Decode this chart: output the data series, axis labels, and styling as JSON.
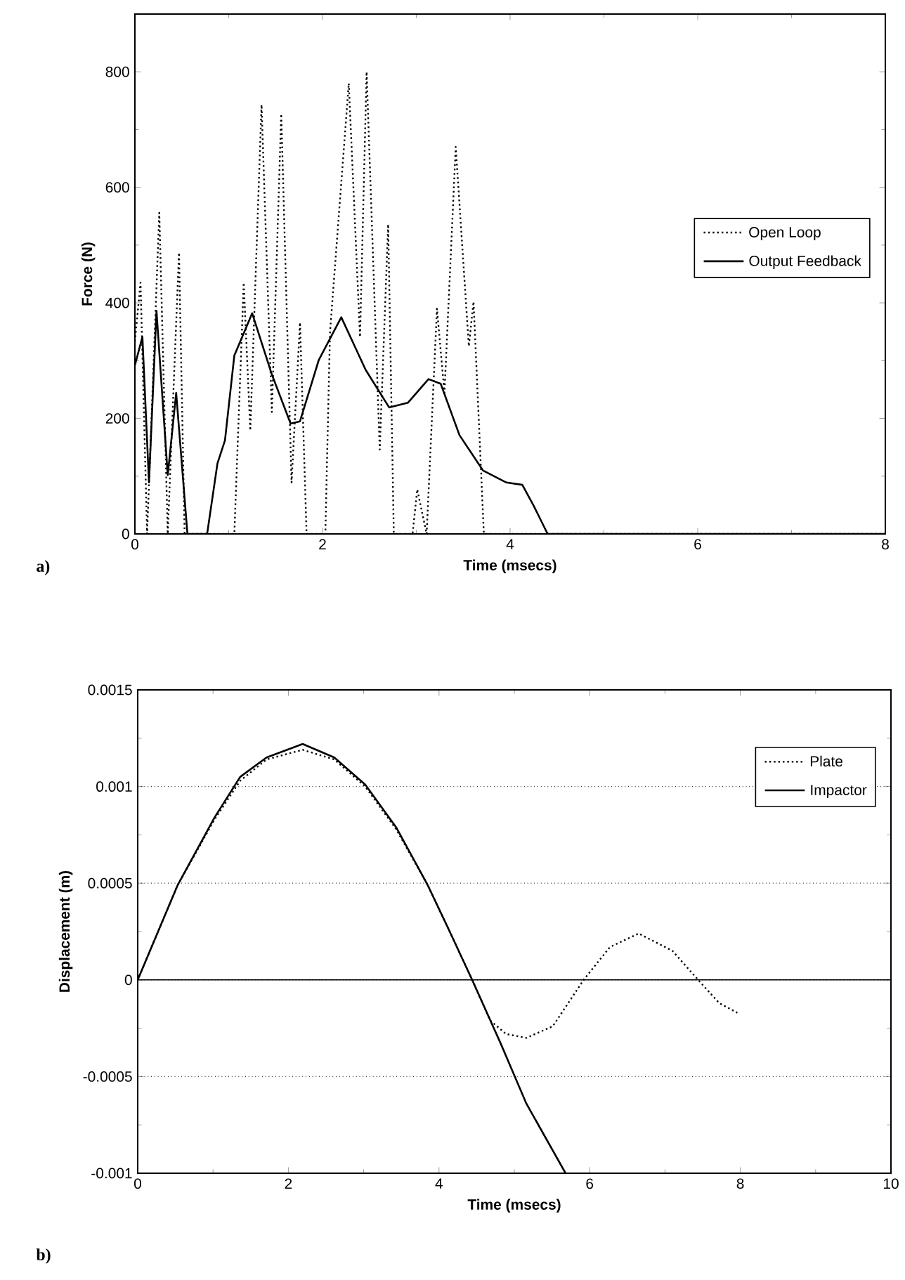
{
  "chart_data": [
    {
      "type": "line",
      "xlabel": "Time (msecs)",
      "ylabel": "Force (N)",
      "xlim": [
        0,
        8
      ],
      "ylim": [
        0,
        900
      ],
      "xticks": [
        0,
        2,
        4,
        6,
        8
      ],
      "yticks": [
        0,
        200,
        400,
        600,
        800
      ],
      "legend": "right",
      "annotations": [
        "a)"
      ],
      "series": [
        {
          "name": "Open Loop",
          "color": "#000000",
          "line_style": "dotted",
          "x": [
            0,
            0.06,
            0.13,
            0.26,
            0.35,
            0.47,
            0.53,
            1.06,
            1.16,
            1.23,
            1.35,
            1.46,
            1.56,
            1.67,
            1.76,
            1.83,
            2.03,
            2.08,
            2.28,
            2.4,
            2.47,
            2.61,
            2.7,
            2.76,
            2.96,
            3.01,
            3.11,
            3.22,
            3.3,
            3.42,
            3.56,
            3.61,
            3.72,
            8
          ],
          "values": [
            333,
            435,
            0,
            556,
            0,
            487,
            0,
            0,
            435,
            179,
            743,
            211,
            727,
            89,
            366,
            0,
            0,
            349,
            780,
            341,
            800,
            146,
            536,
            0,
            0,
            77,
            0,
            390,
            244,
            670,
            325,
            402,
            0,
            0
          ]
        },
        {
          "name": "Output Feedback",
          "color": "#000000",
          "line_style": "solid",
          "x": [
            0,
            0.08,
            0.15,
            0.23,
            0.35,
            0.44,
            0.56,
            0.77,
            0.88,
            0.96,
            1.06,
            1.25,
            1.46,
            1.66,
            1.76,
            1.96,
            2.2,
            2.46,
            2.71,
            2.91,
            3.13,
            3.26,
            3.46,
            3.71,
            3.96,
            4.13,
            4.25,
            4.4,
            8
          ],
          "values": [
            292,
            341,
            89,
            386,
            102,
            244,
            0,
            0,
            122,
            162,
            309,
            382,
            276,
            191,
            195,
            301,
            375,
            284,
            219,
            227,
            268,
            260,
            171,
            110,
            89,
            85,
            49,
            0,
            0
          ]
        }
      ]
    },
    {
      "type": "line",
      "xlabel": "Time (msecs)",
      "ylabel": "Displacement (m)",
      "xlim": [
        0,
        10
      ],
      "ylim": [
        -0.001,
        0.0015
      ],
      "xticks": [
        0,
        2,
        4,
        6,
        8,
        10
      ],
      "yticks": [
        -0.001,
        -0.0005,
        0,
        0.0005,
        0.001,
        0.0015
      ],
      "grid": "y",
      "legend": "top right",
      "annotations": [
        "b)"
      ],
      "ref_lines": [
        {
          "axis": "y",
          "value": 0,
          "color": "#000000",
          "line_style": "solid"
        }
      ],
      "series": [
        {
          "name": "Plate",
          "color": "#000000",
          "line_style": "dotted",
          "x": [
            0,
            0.53,
            1.02,
            1.36,
            1.71,
            2.19,
            2.61,
            3.02,
            3.43,
            3.85,
            4.13,
            4.44,
            4.68,
            4.89,
            5.16,
            5.51,
            5.92,
            6.27,
            6.65,
            7.1,
            7.44,
            7.72,
            7.96
          ],
          "values": [
            0,
            0.00049,
            0.00083,
            0.00103,
            0.00114,
            0.00119,
            0.00114,
            0.001,
            0.00078,
            0.00049,
            0.00026,
            0,
            -0.00021,
            -0.00028,
            -0.0003,
            -0.00024,
            0,
            0.00017,
            0.00024,
            0.00015,
            0,
            -0.00012,
            -0.00017
          ]
        },
        {
          "name": "Impactor",
          "color": "#000000",
          "line_style": "solid",
          "x": [
            0,
            0.53,
            1.02,
            1.36,
            1.71,
            2.19,
            2.61,
            3.02,
            3.43,
            3.85,
            4.13,
            4.44,
            4.82,
            5.16,
            5.68
          ],
          "values": [
            0,
            0.00049,
            0.00084,
            0.00105,
            0.00115,
            0.00122,
            0.00115,
            0.00101,
            0.00079,
            0.00049,
            0.00026,
            0,
            -0.00033,
            -0.00064,
            -0.001
          ]
        }
      ]
    }
  ]
}
